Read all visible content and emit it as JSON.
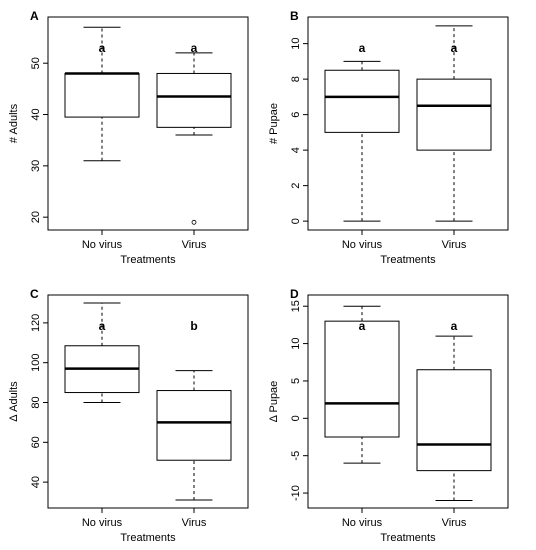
{
  "chart_data": [
    {
      "type": "boxplot",
      "panel_label": "A",
      "xlabel": "Treatments",
      "ylabel": "# Adults",
      "categories": [
        "No virus",
        "Virus"
      ],
      "yticks": [
        20,
        30,
        40,
        50
      ],
      "ylim": [
        17.5,
        59
      ],
      "boxes": [
        {
          "whisker_low": 31,
          "q1": 39.5,
          "median": 48,
          "q3": 48,
          "whisker_high": 57,
          "outliers": [],
          "letter": "a"
        },
        {
          "whisker_low": 36,
          "q1": 37.5,
          "median": 43.5,
          "q3": 48,
          "whisker_high": 52,
          "outliers": [
            19
          ],
          "letter": "a"
        }
      ]
    },
    {
      "type": "boxplot",
      "panel_label": "B",
      "xlabel": "Treatments",
      "ylabel": "# Pupae",
      "categories": [
        "No virus",
        "Virus"
      ],
      "yticks": [
        0,
        2,
        4,
        6,
        8,
        10
      ],
      "ylim": [
        -0.5,
        11.5
      ],
      "boxes": [
        {
          "whisker_low": 0,
          "q1": 5,
          "median": 7,
          "q3": 8.5,
          "whisker_high": 9,
          "outliers": [],
          "letter": "a"
        },
        {
          "whisker_low": 0,
          "q1": 4,
          "median": 6.5,
          "q3": 8,
          "whisker_high": 11,
          "outliers": [],
          "letter": "a"
        }
      ]
    },
    {
      "type": "boxplot",
      "panel_label": "C",
      "xlabel": "Treatments",
      "ylabel": "Δ Adults",
      "categories": [
        "No virus",
        "Virus"
      ],
      "yticks": [
        40,
        60,
        80,
        100,
        120
      ],
      "ylim": [
        27,
        134
      ],
      "boxes": [
        {
          "whisker_low": 80,
          "q1": 85,
          "median": 97,
          "q3": 108.5,
          "whisker_high": 130,
          "outliers": [],
          "letter": "a"
        },
        {
          "whisker_low": 31,
          "q1": 51,
          "median": 70,
          "q3": 86,
          "whisker_high": 96,
          "outliers": [],
          "letter": "b"
        }
      ]
    },
    {
      "type": "boxplot",
      "panel_label": "D",
      "xlabel": "Treatments",
      "ylabel": "Δ Pupae",
      "categories": [
        "No virus",
        "Virus"
      ],
      "yticks": [
        -10,
        -5,
        0,
        5,
        10,
        15
      ],
      "ylim": [
        -12,
        16.5
      ],
      "boxes": [
        {
          "whisker_low": -6,
          "q1": -2.5,
          "median": 2,
          "q3": 13,
          "whisker_high": 15,
          "outliers": [],
          "letter": "a"
        },
        {
          "whisker_low": -11,
          "q1": -7,
          "median": -3.5,
          "q3": 6.5,
          "whisker_high": 11,
          "outliers": [],
          "letter": "a"
        }
      ]
    }
  ]
}
